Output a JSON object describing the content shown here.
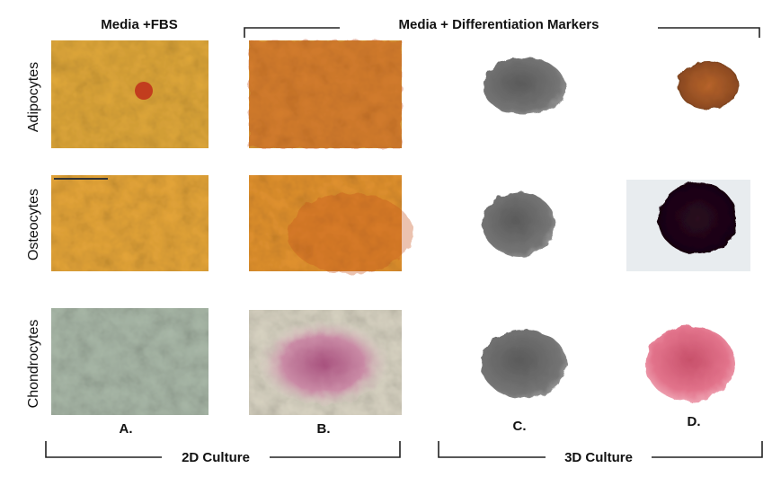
{
  "header": {
    "col_a": "Media +FBS",
    "col_bcd": "Media + Differentiation Markers"
  },
  "rows": [
    "Adipocytes",
    "Osteocytes",
    "Chondrocytes"
  ],
  "columns": [
    "A.",
    "B.",
    "C.",
    "D."
  ],
  "footer": {
    "left": "2D Culture",
    "right": "3D Culture"
  }
}
